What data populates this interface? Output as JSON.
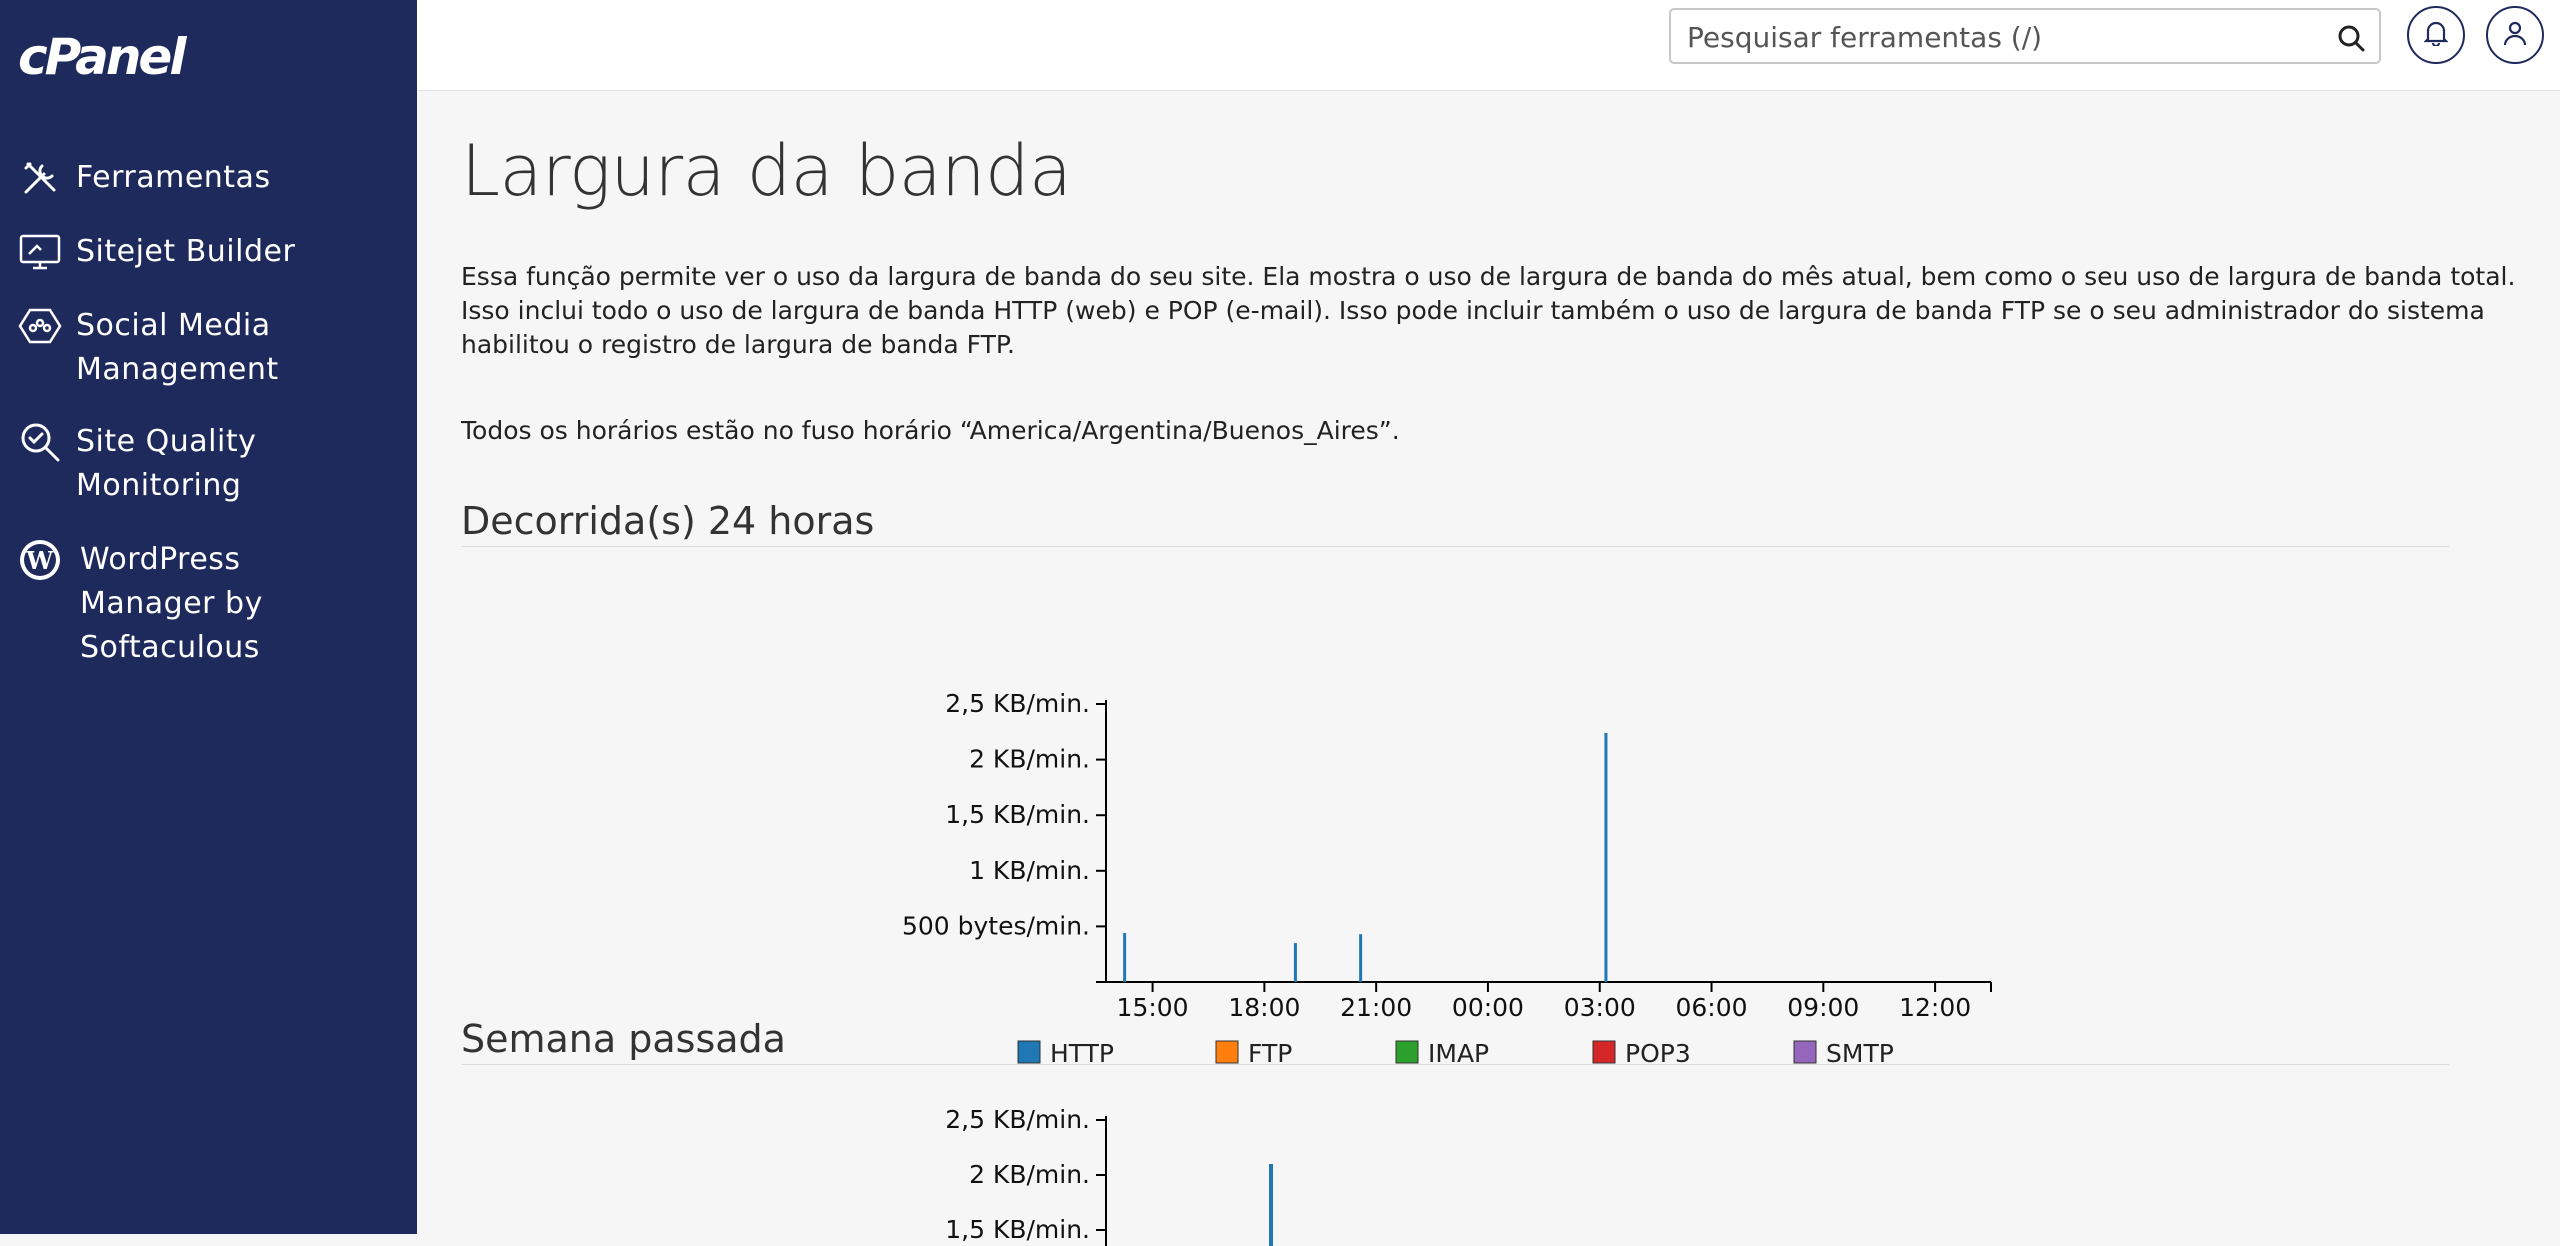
{
  "app": {
    "logo": "cPanel"
  },
  "sidebar": {
    "items": [
      {
        "label": "Ferramentas",
        "icon": "tools-icon"
      },
      {
        "label": "Sitejet Builder",
        "icon": "monitor-icon"
      },
      {
        "label": "Social Media\nManagement",
        "icon": "social-media-icon"
      },
      {
        "label": "Site Quality\nMonitoring",
        "icon": "magnifier-icon"
      },
      {
        "label": "WordPress\n Manager by\nSoftaculous",
        "icon": "wordpress-icon"
      }
    ]
  },
  "header": {
    "search_placeholder": "Pesquisar ferramentas (/)",
    "icons": [
      "search-icon",
      "bell-icon",
      "user-icon"
    ]
  },
  "main": {
    "title": "Largura da banda",
    "description": "Essa função permite ver o uso da largura de banda do seu site. Ela mostra o uso de largura de banda do mês atual, bem como o seu uso de largura de banda total. Isso inclui todo o uso de largura de banda HTTP (web) e POP (e-mail). Isso pode incluir também o uso de largura de banda FTP se o seu administrador do sistema habilitou o registro de largura de banda FTP.",
    "timezone_note": "Todos os horários estão no fuso horário “America/Argentina/Buenos_Aires”.",
    "sections": [
      {
        "title": "Decorrida(s) 24 horas"
      },
      {
        "title": "Semana passada"
      }
    ]
  },
  "colors": {
    "sidebar_bg": "#1f2a5c",
    "http": "#1f77b4",
    "ftp": "#ff7f0e",
    "imap": "#2ca02c",
    "pop3": "#d62728",
    "smtp": "#9467bd"
  },
  "chart_data": [
    {
      "type": "bar",
      "title": "Decorrida(s) 24 horas",
      "y_ticks": [
        "2,5 KB/min.",
        "2 KB/min.",
        "1,5 KB/min.",
        "1 KB/min.",
        "500 bytes/min."
      ],
      "y_tick_values": [
        2.5,
        2,
        1.5,
        1,
        0.5
      ],
      "ylim": [
        0,
        2.5
      ],
      "y_unit": "KB/min.",
      "x_ticks": [
        "15:00",
        "18:00",
        "21:00",
        "00:00",
        "03:00",
        "06:00",
        "09:00",
        "12:00"
      ],
      "xlim_hours": [
        13.75,
        37.5
      ],
      "legend": [
        "HTTP",
        "FTP",
        "IMAP",
        "POP3",
        "SMTP"
      ],
      "legend_position": "bottom",
      "grid": false,
      "series": [
        {
          "name": "HTTP",
          "points": [
            {
              "x": "14:15",
              "y": 0.44
            },
            {
              "x": "18:50",
              "y": 0.35
            },
            {
              "x": "20:35",
              "y": 0.43
            },
            {
              "x": "03:10",
              "y": 2.24
            }
          ]
        }
      ]
    },
    {
      "type": "bar",
      "title": "Semana passada",
      "y_ticks": [
        "2,5 KB/min.",
        "2 KB/min.",
        "1,5 KB/min."
      ],
      "y_tick_values": [
        2.5,
        2,
        1.5
      ],
      "ylim": [
        0,
        2.5
      ],
      "y_unit": "KB/min.",
      "legend_position": "bottom",
      "grid": false,
      "series": [
        {
          "name": "HTTP",
          "points": [
            {
              "y": 2.1
            }
          ]
        }
      ]
    }
  ]
}
